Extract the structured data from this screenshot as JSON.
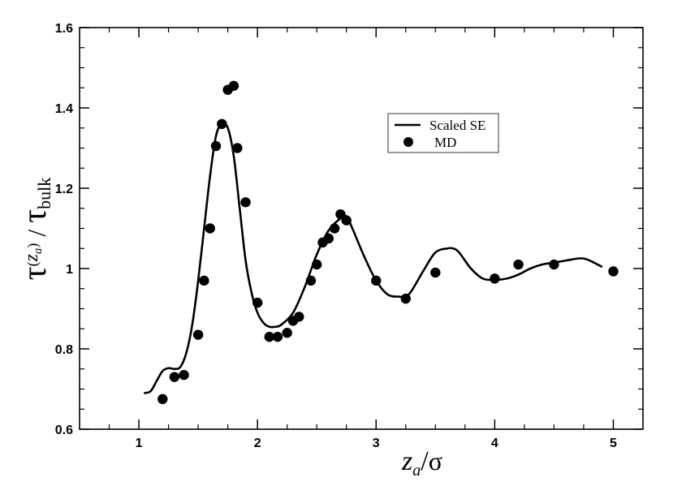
{
  "chart_data": {
    "type": "scatter",
    "xlabel": {
      "main": "z",
      "sub": "a",
      "denom": "σ"
    },
    "ylabel": {
      "tau": "τ",
      "z": "z",
      "zsub": "a",
      "bulk": "bulk"
    },
    "xlim": [
      0.5,
      5.25
    ],
    "ylim": [
      0.6,
      1.6
    ],
    "x_ticks": [
      1,
      2,
      3,
      4,
      5
    ],
    "x_tick_labels": [
      "1",
      "2",
      "3",
      "4",
      "5"
    ],
    "y_ticks": [
      0.6,
      0.8,
      1.0,
      1.2,
      1.4,
      1.6
    ],
    "y_tick_labels": [
      "0.6",
      "0.8",
      "1",
      "1.2",
      "1.4",
      "1.6"
    ],
    "legend_position": "top-right",
    "series": [
      {
        "name": "Scaled SE",
        "kind": "line",
        "x": [
          1.05,
          1.1,
          1.15,
          1.2,
          1.25,
          1.3,
          1.35,
          1.4,
          1.45,
          1.5,
          1.55,
          1.6,
          1.65,
          1.7,
          1.75,
          1.8,
          1.85,
          1.9,
          1.95,
          2.0,
          2.05,
          2.1,
          2.15,
          2.2,
          2.3,
          2.4,
          2.5,
          2.6,
          2.7,
          2.75,
          2.8,
          2.9,
          3.0,
          3.1,
          3.2,
          3.25,
          3.3,
          3.4,
          3.5,
          3.6,
          3.65,
          3.7,
          3.8,
          3.9,
          4.0,
          4.1,
          4.2,
          4.3,
          4.4,
          4.5,
          4.6,
          4.7,
          4.75,
          4.8,
          4.9
        ],
        "y": [
          0.69,
          0.695,
          0.72,
          0.745,
          0.752,
          0.75,
          0.755,
          0.79,
          0.86,
          0.97,
          1.1,
          1.23,
          1.33,
          1.36,
          1.35,
          1.28,
          1.15,
          1.02,
          0.94,
          0.89,
          0.865,
          0.855,
          0.855,
          0.86,
          0.89,
          0.955,
          1.035,
          1.095,
          1.125,
          1.13,
          1.1,
          1.03,
          0.97,
          0.935,
          0.93,
          0.93,
          0.945,
          0.995,
          1.04,
          1.05,
          1.05,
          1.04,
          1.0,
          0.975,
          0.972,
          0.975,
          0.985,
          1.0,
          1.01,
          1.015,
          1.02,
          1.025,
          1.025,
          1.02,
          1.005
        ]
      },
      {
        "name": "MD",
        "kind": "points",
        "x": [
          1.2,
          1.3,
          1.38,
          1.5,
          1.55,
          1.6,
          1.65,
          1.7,
          1.75,
          1.8,
          1.83,
          1.9,
          2.0,
          2.1,
          2.17,
          2.25,
          2.3,
          2.35,
          2.45,
          2.5,
          2.55,
          2.6,
          2.65,
          2.7,
          2.75,
          3.0,
          3.25,
          3.5,
          4.0,
          4.2,
          4.5,
          5.0
        ],
        "y": [
          0.675,
          0.73,
          0.735,
          0.835,
          0.97,
          1.1,
          1.305,
          1.36,
          1.445,
          1.455,
          1.3,
          1.165,
          0.915,
          0.83,
          0.83,
          0.84,
          0.87,
          0.88,
          0.97,
          1.01,
          1.065,
          1.075,
          1.1,
          1.135,
          1.12,
          0.97,
          0.925,
          0.99,
          0.975,
          1.01,
          1.01,
          0.993
        ]
      }
    ]
  }
}
